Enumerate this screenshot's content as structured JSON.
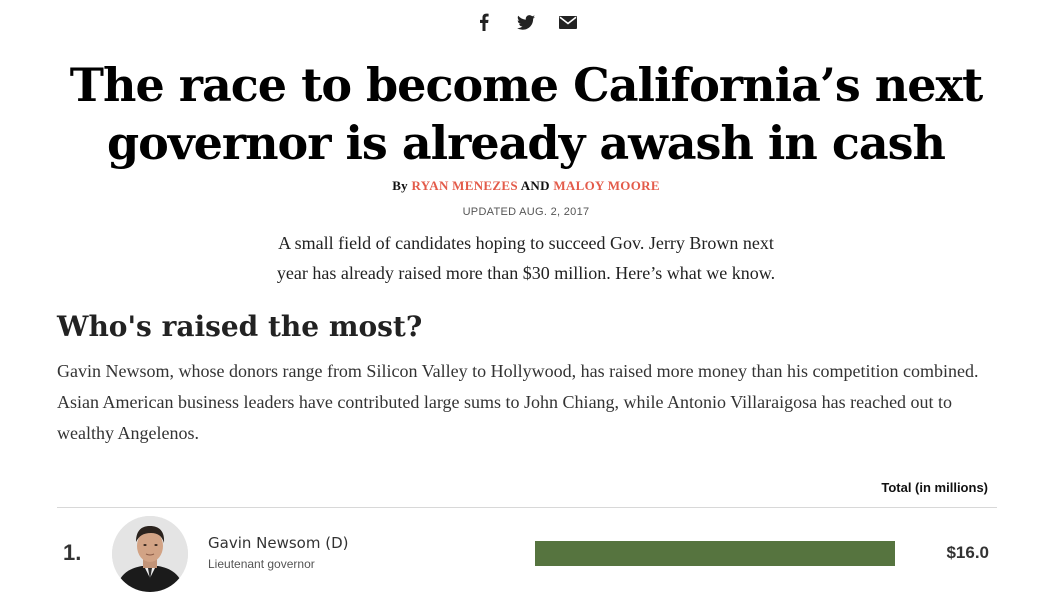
{
  "share": {
    "icons": [
      "facebook-icon",
      "twitter-icon",
      "email-icon"
    ]
  },
  "article": {
    "headline_line1": "The race to become California’s next",
    "headline_line2": "governor is already awash in cash",
    "byline_prefix": "By",
    "author1": "Ryan Menezes",
    "byline_and": "and",
    "author2": "Maloy Moore",
    "updated": "UPDATED AUG. 2, 2017",
    "dek_line1": "A small field of candidates hoping to succeed Gov. Jerry Brown next",
    "dek_line2": "year has already raised more than $30 million. Here’s what we know."
  },
  "section": {
    "title": "Who's raised the most?",
    "body": "Gavin Newsom, whose donors range from Silicon Valley to Hollywood, has raised more money than his competition combined. Asian American business leaders have contributed large sums to John Chiang, while Antonio Villaraigosa has reached out to wealthy Angelenos."
  },
  "table": {
    "column_header": "Total (in millions)",
    "rows": [
      {
        "rank": "1.",
        "name": "Gavin Newsom (D)",
        "role": "Lieutenant governor",
        "total_label": "$16.0",
        "bar_fraction": 1.0,
        "bar_color": "#56743f"
      }
    ]
  },
  "colors": {
    "author_link": "#e35b4a",
    "bar": "#56743f"
  }
}
